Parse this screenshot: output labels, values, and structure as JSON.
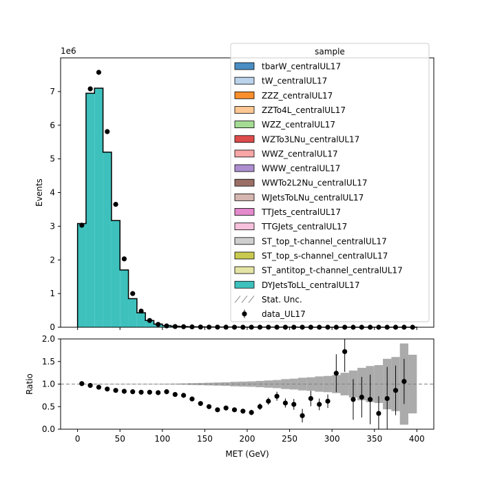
{
  "chart_data": [
    {
      "type": "bar",
      "panel": "main",
      "ylabel": "Events",
      "y_offset_label": "1e6",
      "ylim": [
        0,
        8000000
      ],
      "yticks": [
        0,
        1000000,
        2000000,
        3000000,
        4000000,
        5000000,
        6000000,
        7000000
      ],
      "ytick_labels": [
        "0",
        "1",
        "2",
        "3",
        "4",
        "5",
        "6",
        "7"
      ],
      "xlim": [
        -20,
        420
      ],
      "bin_edges": [
        0,
        10,
        20,
        30,
        40,
        50,
        60,
        70,
        80,
        90,
        100,
        110,
        120,
        130,
        140,
        150,
        160,
        170,
        180,
        190,
        200,
        210,
        220,
        230,
        240,
        250,
        260,
        270,
        280,
        290,
        300,
        310,
        320,
        330,
        340,
        350,
        360,
        370,
        380,
        390,
        400
      ],
      "series": [
        {
          "name": "DYJetsToLL_centralUL17",
          "color": "#3ec1bd",
          "values": [
            3080000,
            6950000,
            7100000,
            5200000,
            3170000,
            1700000,
            850000,
            430000,
            200000,
            95000,
            50000,
            30000,
            20000,
            14000,
            10000,
            8000,
            6000,
            5000,
            4000,
            3500,
            3000,
            2500,
            2000,
            1700,
            1500,
            1300,
            1100,
            900,
            800,
            700,
            600,
            500,
            450,
            400,
            350,
            300,
            260,
            230,
            200,
            180
          ]
        }
      ],
      "data_points": {
        "name": "data_UL17",
        "x": [
          5,
          15,
          25,
          35,
          45,
          55,
          65,
          75,
          85,
          95,
          105,
          115,
          125,
          135,
          145,
          155,
          165,
          175,
          185,
          195,
          205,
          215,
          225,
          235,
          245,
          255,
          265,
          275,
          285,
          295,
          305,
          315,
          325,
          335,
          345,
          355,
          365,
          375,
          385,
          395
        ],
        "y": [
          3030000,
          7080000,
          7570000,
          5810000,
          3650000,
          2030000,
          1000000,
          480000,
          200000,
          85000,
          40000,
          22000,
          15000,
          10000,
          6000,
          4000,
          3000,
          2000,
          1500,
          1200,
          1000,
          900,
          800,
          700,
          600,
          500,
          400,
          350,
          300,
          250,
          200,
          180,
          150,
          120,
          100,
          80,
          70,
          60,
          50,
          40
        ]
      },
      "legend": {
        "title": "sample",
        "location": "upper right",
        "entries": [
          {
            "label": "tbarW_centralUL17",
            "color": "#4a8ec4"
          },
          {
            "label": "tW_centralUL17",
            "color": "#bcd3ec"
          },
          {
            "label": "ZZZ_centralUL17",
            "color": "#fa8f2b"
          },
          {
            "label": "ZZTo4L_centralUL17",
            "color": "#fdc893"
          },
          {
            "label": "WZZ_centralUL17",
            "color": "#a4dc94"
          },
          {
            "label": "WZTo3LNu_centralUL17",
            "color": "#dd4b4b"
          },
          {
            "label": "WWZ_centralUL17",
            "color": "#f8a6a6"
          },
          {
            "label": "WWW_centralUL17",
            "color": "#ad8fd0"
          },
          {
            "label": "WWTo2L2Nu_centralUL17",
            "color": "#9b6f66"
          },
          {
            "label": "WJetsToLNu_centralUL17",
            "color": "#d6b6b0"
          },
          {
            "label": "TTJets_centralUL17",
            "color": "#e489cc"
          },
          {
            "label": "TTGJets_centralUL17",
            "color": "#f7c1dd"
          },
          {
            "label": "ST_top_t-channel_centralUL17",
            "color": "#cfcfcf"
          },
          {
            "label": "ST_top_s-channel_centralUL17",
            "color": "#c9c94f"
          },
          {
            "label": "ST_antitop_t-channel_centralUL17",
            "color": "#e4e4a5"
          },
          {
            "label": "DYJetsToLL_centralUL17",
            "color": "#3ec1bd"
          },
          {
            "label": "Stat. Unc.",
            "marker": "hatch"
          },
          {
            "label": "data_UL17",
            "marker": "errorbar-point"
          }
        ]
      }
    },
    {
      "type": "scatter",
      "panel": "ratio",
      "xlabel": "MET (GeV)",
      "ylabel": "Ratio",
      "ylim": [
        0.0,
        2.0
      ],
      "yticks": [
        0.0,
        0.5,
        1.0,
        1.5,
        2.0
      ],
      "ytick_labels": [
        "0.0",
        "0.5",
        "1.0",
        "1.5",
        "2.0"
      ],
      "xlim": [
        -20,
        420
      ],
      "xticks": [
        0,
        50,
        100,
        150,
        200,
        250,
        300,
        350,
        400
      ],
      "xtick_labels": [
        "0",
        "50",
        "100",
        "150",
        "200",
        "250",
        "300",
        "350",
        "400"
      ],
      "reference_line": 1.0,
      "x": [
        5,
        15,
        25,
        35,
        45,
        55,
        65,
        75,
        85,
        95,
        105,
        115,
        125,
        135,
        145,
        155,
        165,
        175,
        185,
        195,
        205,
        215,
        225,
        235,
        245,
        255,
        265,
        275,
        285,
        295,
        305,
        315,
        325,
        335,
        345,
        355,
        365,
        375,
        385
      ],
      "y": [
        1.01,
        0.97,
        0.93,
        0.89,
        0.86,
        0.84,
        0.83,
        0.82,
        0.82,
        0.81,
        0.83,
        0.77,
        0.75,
        0.67,
        0.57,
        0.5,
        0.43,
        0.47,
        0.43,
        0.4,
        0.37,
        0.5,
        0.62,
        0.73,
        0.58,
        0.55,
        0.3,
        0.68,
        0.55,
        0.62,
        1.24,
        1.72,
        0.66,
        0.71,
        0.66,
        0.35,
        0.68,
        0.86,
        1.06
      ],
      "err": [
        0.01,
        0.01,
        0.01,
        0.01,
        0.01,
        0.01,
        0.01,
        0.01,
        0.01,
        0.01,
        0.01,
        0.02,
        0.02,
        0.03,
        0.03,
        0.03,
        0.04,
        0.05,
        0.05,
        0.05,
        0.06,
        0.07,
        0.08,
        0.1,
        0.1,
        0.12,
        0.15,
        0.17,
        0.13,
        0.15,
        0.42,
        0.45,
        0.45,
        0.45,
        0.55,
        0.38,
        0.7,
        0.55,
        0.5
      ],
      "stat_unc_band": {
        "x_edges": [
          0,
          10,
          20,
          30,
          40,
          50,
          60,
          70,
          80,
          90,
          100,
          110,
          120,
          130,
          140,
          150,
          160,
          170,
          180,
          190,
          200,
          210,
          220,
          230,
          240,
          250,
          260,
          270,
          280,
          290,
          300,
          310,
          320,
          330,
          340,
          350,
          360,
          370,
          380,
          390,
          400
        ],
        "half_width": [
          0.001,
          0.001,
          0.001,
          0.001,
          0.001,
          0.002,
          0.003,
          0.004,
          0.005,
          0.006,
          0.008,
          0.01,
          0.015,
          0.02,
          0.025,
          0.03,
          0.035,
          0.04,
          0.05,
          0.055,
          0.06,
          0.07,
          0.08,
          0.09,
          0.11,
          0.12,
          0.14,
          0.15,
          0.17,
          0.18,
          0.2,
          0.25,
          0.3,
          0.36,
          0.4,
          0.42,
          0.56,
          0.6,
          0.9,
          0.65
        ]
      }
    }
  ]
}
